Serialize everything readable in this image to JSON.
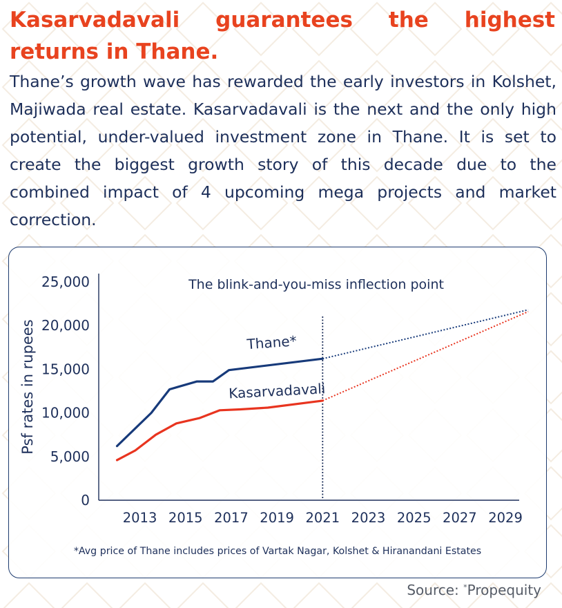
{
  "header": {
    "title": "Kasarvadavali guarantees the highest returns in Thane.",
    "intro": "Thane’s growth wave has rewarded the early investors in Kolshet, Majiwada real estate. Kasarvadavali is the next and the only high potential, under-valued investment zone in Thane. It is set to create the biggest growth story of this decade due to the combined impact of 4 upcoming mega projects and market correction."
  },
  "colors": {
    "title": "#e8431f",
    "text": "#1d2f5a",
    "thane_series": "#173a7a",
    "kasarvadavali_series": "#e8341f"
  },
  "chart_data": {
    "type": "line",
    "title": "",
    "ylabel": "Psf rates in rupees",
    "xlabel": "",
    "ylim": [
      0,
      25000
    ],
    "xlim": [
      2011.2,
      2030.6
    ],
    "y_ticks": [
      {
        "value": 0,
        "label": "0"
      },
      {
        "value": 5000,
        "label": "5,000"
      },
      {
        "value": 10000,
        "label": "10,000"
      },
      {
        "value": 15000,
        "label": "15,000"
      },
      {
        "value": 20000,
        "label": "20,000"
      },
      {
        "value": 25000,
        "label": "25,000"
      }
    ],
    "x_ticks": [
      {
        "value": 2013,
        "label": "2013"
      },
      {
        "value": 2015,
        "label": "2015"
      },
      {
        "value": 2017,
        "label": "2017"
      },
      {
        "value": 2019,
        "label": "2019"
      },
      {
        "value": 2021,
        "label": "2021"
      },
      {
        "value": 2023,
        "label": "2023"
      },
      {
        "value": 2025,
        "label": "2025"
      },
      {
        "value": 2027,
        "label": "2027"
      },
      {
        "value": 2029,
        "label": "2029"
      }
    ],
    "inflection": {
      "x": 2021,
      "label": "The blink-and-you-miss inflection point"
    },
    "series": [
      {
        "name": "Thane*",
        "color_key": "thane_series",
        "actual": [
          {
            "x": 2012,
            "y": 6200
          },
          {
            "x": 2013.5,
            "y": 10000
          },
          {
            "x": 2014.3,
            "y": 12700
          },
          {
            "x": 2015.5,
            "y": 13600
          },
          {
            "x": 2016.2,
            "y": 13600
          },
          {
            "x": 2016.9,
            "y": 14900
          },
          {
            "x": 2021,
            "y": 16200
          }
        ],
        "projection": [
          {
            "x": 2021,
            "y": 16200
          },
          {
            "x": 2030,
            "y": 21800
          }
        ]
      },
      {
        "name": "Kasarvadavali",
        "color_key": "kasarvadavali_series",
        "actual": [
          {
            "x": 2012,
            "y": 4600
          },
          {
            "x": 2012.8,
            "y": 5700
          },
          {
            "x": 2013.7,
            "y": 7500
          },
          {
            "x": 2014.6,
            "y": 8800
          },
          {
            "x": 2015.6,
            "y": 9400
          },
          {
            "x": 2016.5,
            "y": 10300
          },
          {
            "x": 2017.4,
            "y": 10400
          },
          {
            "x": 2018.6,
            "y": 10600
          },
          {
            "x": 2021,
            "y": 11400
          }
        ],
        "projection": [
          {
            "x": 2021,
            "y": 11400
          },
          {
            "x": 2030,
            "y": 21600
          }
        ]
      }
    ],
    "footnote": "*Avg price of Thane includes prices of Vartak Nagar, Kolshet & Hiranandani Estates",
    "grid": false,
    "legend": "inline"
  },
  "source": {
    "label": "Source: ",
    "mark": "*",
    "name": "Propequity"
  }
}
